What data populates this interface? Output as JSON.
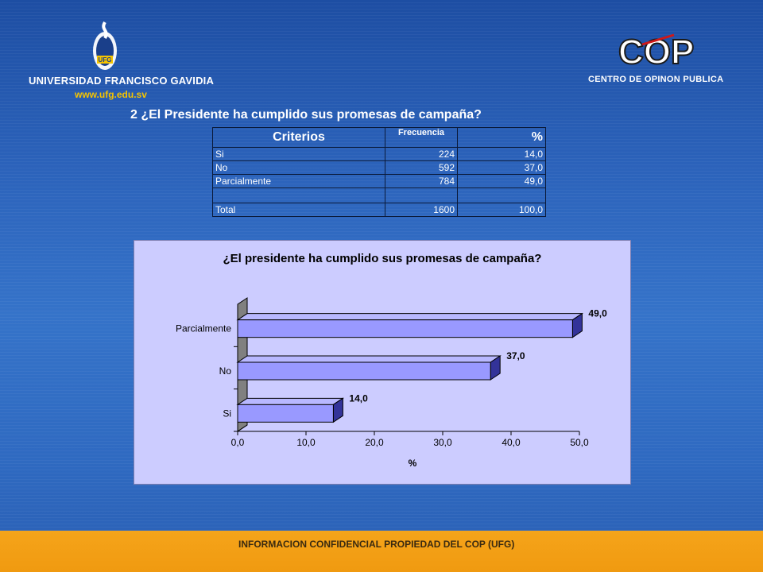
{
  "header": {
    "left_logo": {
      "emblem_text": "UFG",
      "name": "UNIVERSIDAD FRANCISCO GAVIDIA",
      "url": "www.ufg.edu.sv"
    },
    "right_logo": {
      "mark": "COP",
      "subtitle": "CENTRO DE OPINON PUBLICA"
    }
  },
  "question_title": "2 ¿El Presidente  ha cumplido sus promesas de campaña?",
  "table": {
    "headers": {
      "criterios": "Criterios",
      "frecuencia": "Frecuencia",
      "porcentaje": "%"
    },
    "rows": [
      {
        "label": "Si",
        "freq": "224",
        "pct": "14,0"
      },
      {
        "label": "No",
        "freq": "592",
        "pct": "37,0"
      },
      {
        "label": "Parcialmente",
        "freq": "784",
        "pct": "49,0"
      }
    ],
    "total": {
      "label": "Total",
      "freq": "1600",
      "pct": "100,0"
    }
  },
  "chart_data": {
    "type": "bar",
    "orientation": "horizontal",
    "title": "¿El presidente ha cumplido sus promesas de campaña?",
    "categories": [
      "Si",
      "No",
      "Parcialmente"
    ],
    "values": [
      14.0,
      37.0,
      49.0
    ],
    "value_labels": [
      "14,0",
      "37,0",
      "49,0"
    ],
    "xlabel": "%",
    "ylabel": "",
    "xlim": [
      0,
      50
    ],
    "xticks": [
      "0,0",
      "10,0",
      "20,0",
      "30,0",
      "40,0",
      "50,0"
    ],
    "grid": false,
    "legend": "none",
    "bar_color": "#9999ff",
    "background_color": "#ccccff"
  },
  "footer": {
    "text": "INFORMACION CONFIDENCIAL PROPIEDAD DEL COP (UFG)"
  }
}
